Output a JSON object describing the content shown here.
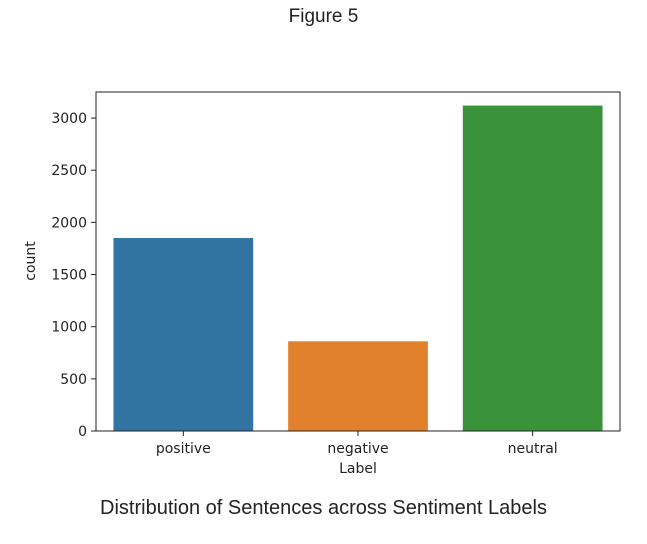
{
  "figure_label": "Figure 5",
  "caption": "Distribution of Sentences across Sentiment Labels",
  "chart_data": {
    "type": "bar",
    "categories": [
      "positive",
      "negative",
      "neutral"
    ],
    "values": [
      1850,
      860,
      3120
    ],
    "colors": [
      "#3274a1",
      "#e1812c",
      "#3a923a"
    ],
    "xlabel": "Label",
    "ylabel": "count",
    "ylim": [
      0,
      3250
    ],
    "yticks": [
      0,
      500,
      1000,
      1500,
      2000,
      2500,
      3000
    ],
    "grid": false,
    "legend": "none"
  }
}
